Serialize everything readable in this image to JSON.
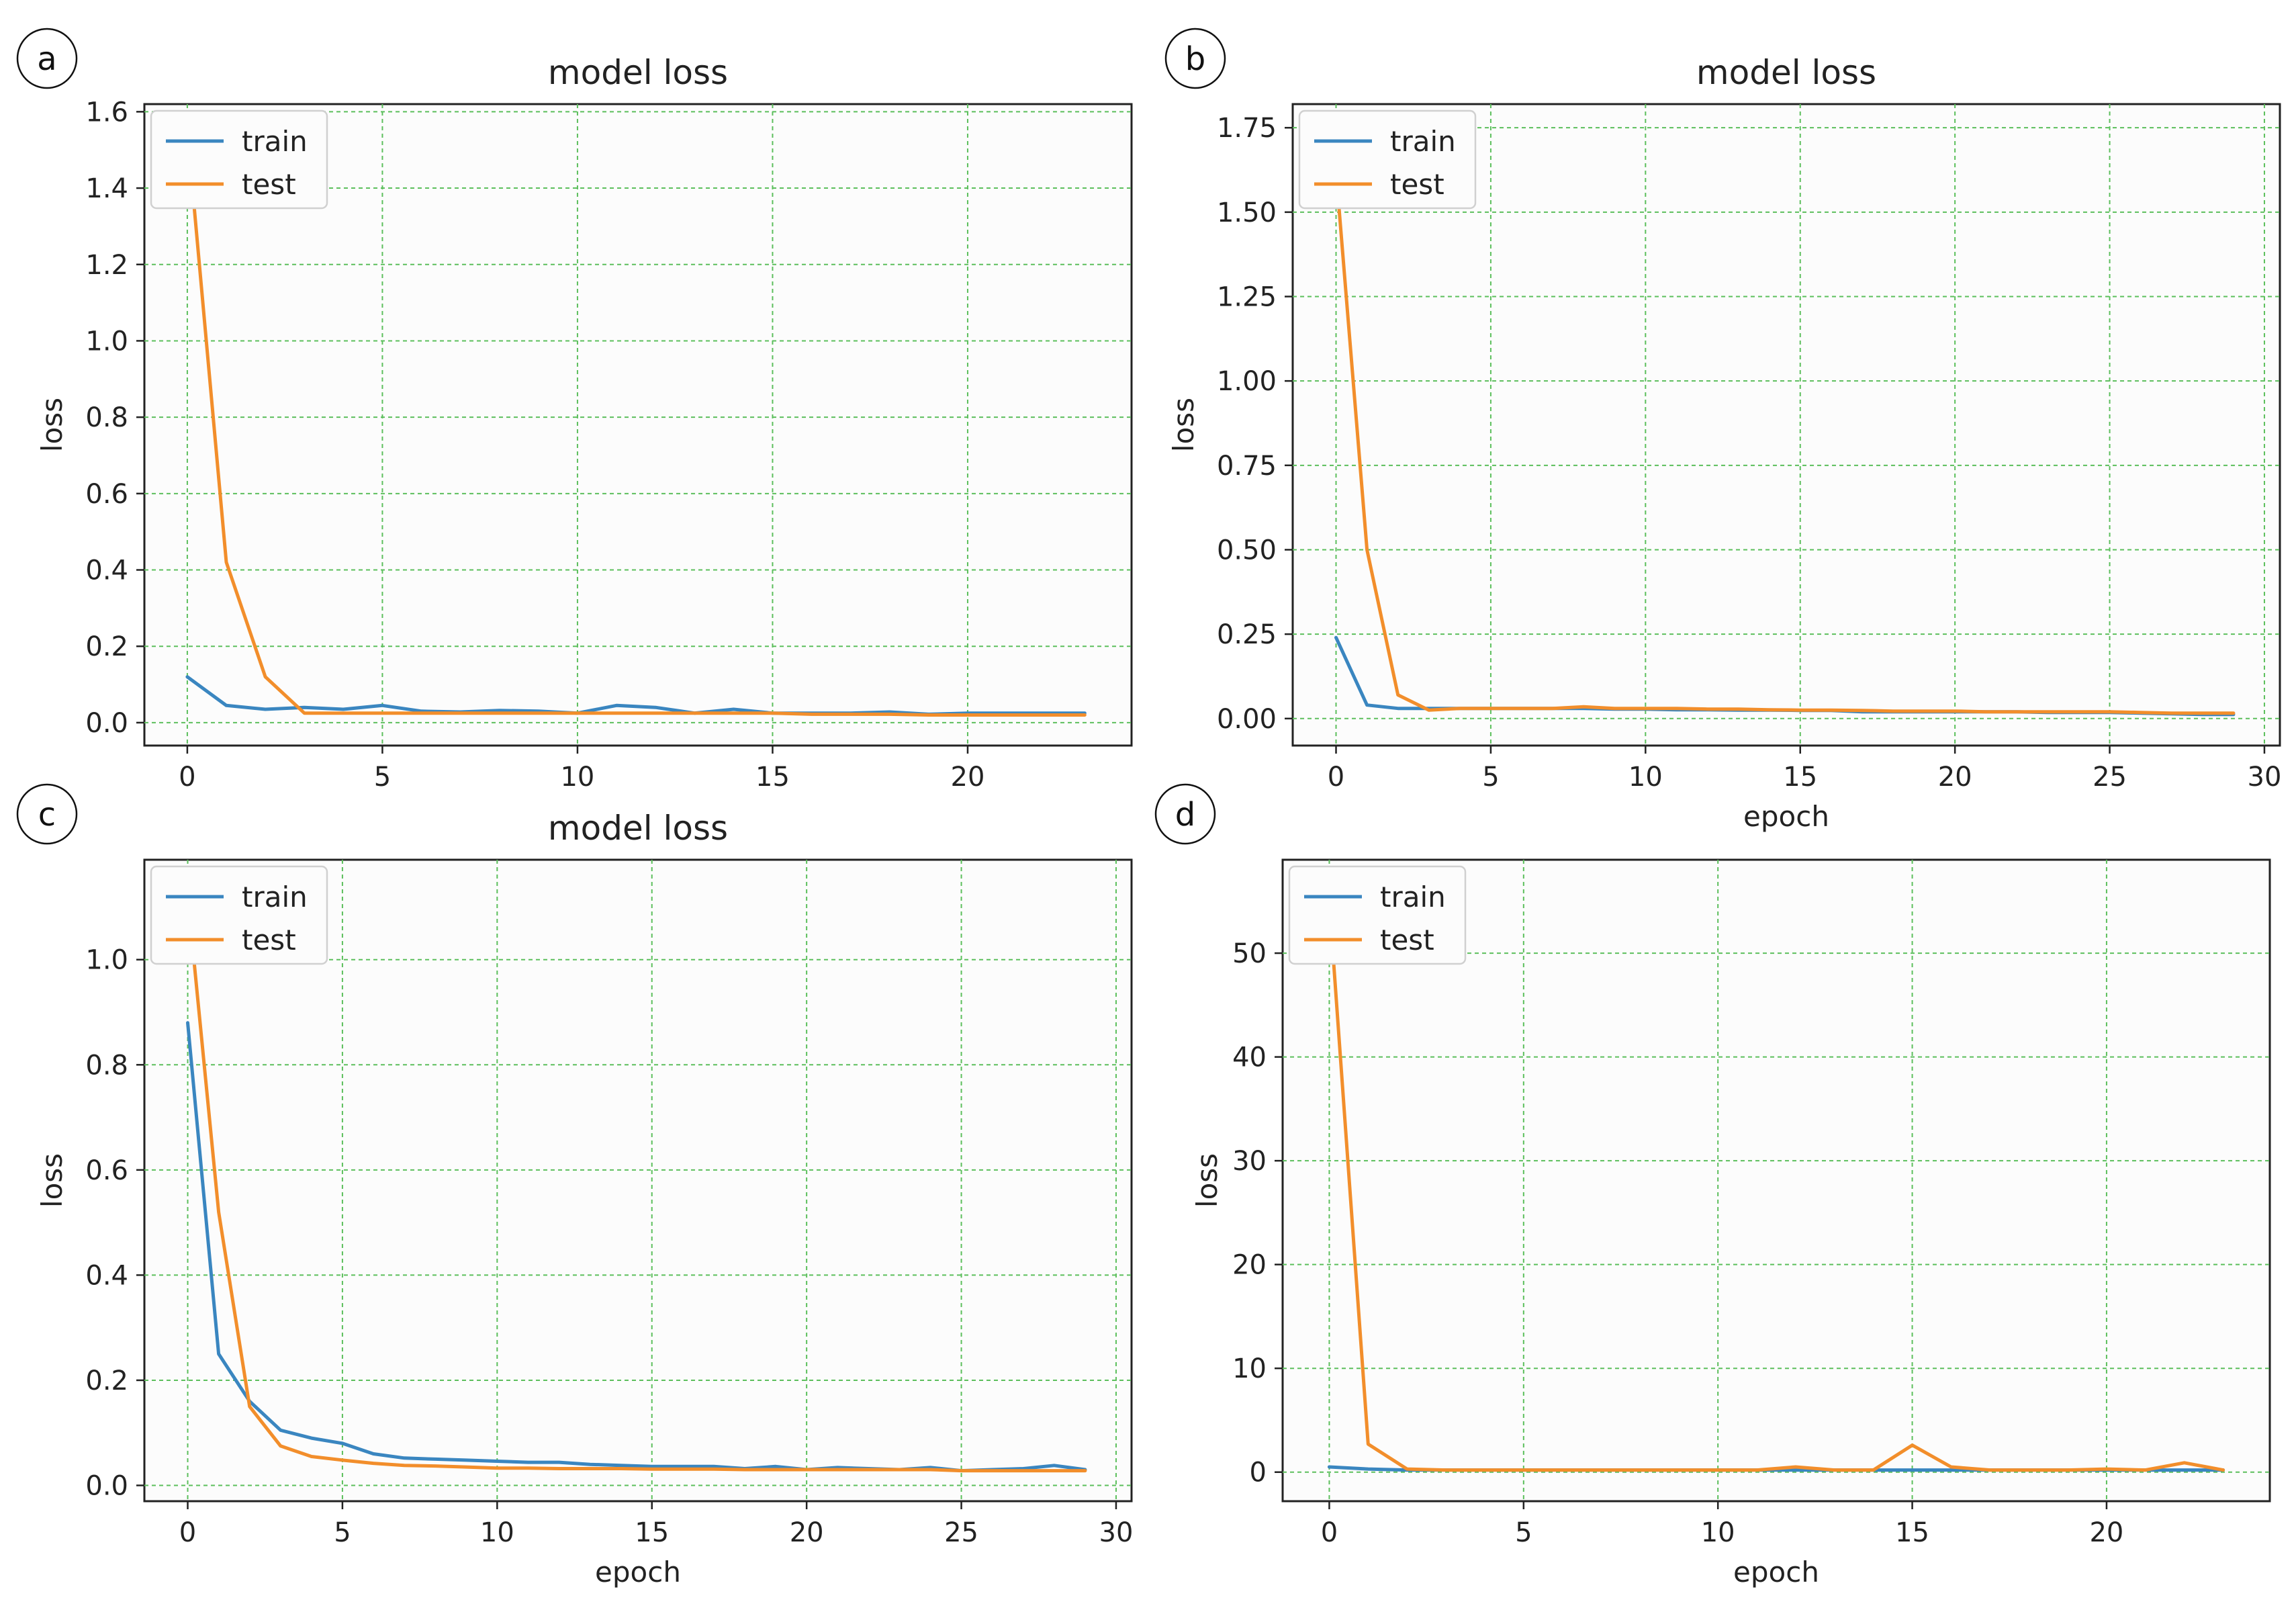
{
  "chart_data": [
    {
      "panel_label": "a",
      "type": "line",
      "title": "model loss",
      "xlabel": "",
      "ylabel": "loss",
      "xlim": [
        -1.1,
        24.2
      ],
      "ylim": [
        -0.06,
        1.62
      ],
      "xticks": [
        0,
        5,
        10,
        15,
        20
      ],
      "xtick_labels": [
        "0",
        "5",
        "10",
        "15",
        "20"
      ],
      "yticks": [
        0,
        0.2,
        0.4,
        0.6,
        0.8,
        1.0,
        1.2,
        1.4,
        1.6
      ],
      "ytick_labels": [
        "0.0",
        "0.2",
        "0.4",
        "0.6",
        "0.8",
        "1.0",
        "1.2",
        "1.4",
        "1.6"
      ],
      "grid": true,
      "legend_position": "upper-left",
      "series": [
        {
          "name": "train",
          "color": "#3a86c0",
          "x": [
            0,
            1,
            2,
            3,
            4,
            5,
            6,
            7,
            8,
            9,
            10,
            11,
            12,
            13,
            14,
            15,
            16,
            17,
            18,
            19,
            20,
            21,
            22,
            23
          ],
          "values": [
            0.12,
            0.045,
            0.035,
            0.04,
            0.035,
            0.045,
            0.03,
            0.028,
            0.032,
            0.03,
            0.025,
            0.045,
            0.04,
            0.025,
            0.035,
            0.025,
            0.025,
            0.025,
            0.028,
            0.022,
            0.025,
            0.025,
            0.025,
            0.025
          ]
        },
        {
          "name": "test",
          "color": "#f28e2b",
          "x": [
            0,
            1,
            2,
            3,
            4,
            5,
            6,
            7,
            8,
            9,
            10,
            11,
            12,
            13,
            14,
            15,
            16,
            17,
            18,
            19,
            20,
            21,
            22,
            23
          ],
          "values": [
            1.55,
            0.42,
            0.12,
            0.025,
            0.025,
            0.025,
            0.025,
            0.025,
            0.025,
            0.025,
            0.025,
            0.025,
            0.025,
            0.025,
            0.025,
            0.025,
            0.022,
            0.022,
            0.022,
            0.02,
            0.02,
            0.02,
            0.02,
            0.02
          ]
        }
      ]
    },
    {
      "panel_label": "b",
      "type": "line",
      "title": "model loss",
      "xlabel": "epoch",
      "ylabel": "loss",
      "xlim": [
        -1.4,
        30.5
      ],
      "ylim": [
        -0.08,
        1.82
      ],
      "xticks": [
        0,
        5,
        10,
        15,
        20,
        25,
        30
      ],
      "xtick_labels": [
        "0",
        "5",
        "10",
        "15",
        "20",
        "25",
        "30"
      ],
      "yticks": [
        0,
        0.25,
        0.5,
        0.75,
        1.0,
        1.25,
        1.5,
        1.75
      ],
      "ytick_labels": [
        "0.00",
        "0.25",
        "0.50",
        "0.75",
        "1.00",
        "1.25",
        "1.50",
        "1.75"
      ],
      "grid": true,
      "legend_position": "upper-left",
      "series": [
        {
          "name": "train",
          "color": "#3a86c0",
          "x": [
            0,
            1,
            2,
            3,
            4,
            5,
            6,
            7,
            8,
            9,
            10,
            11,
            12,
            13,
            14,
            15,
            16,
            17,
            18,
            19,
            20,
            21,
            22,
            23,
            24,
            25,
            26,
            27,
            28,
            29
          ],
          "values": [
            0.24,
            0.04,
            0.03,
            0.03,
            0.03,
            0.03,
            0.03,
            0.03,
            0.03,
            0.028,
            0.028,
            0.026,
            0.026,
            0.025,
            0.025,
            0.024,
            0.024,
            0.02,
            0.02,
            0.02,
            0.02,
            0.02,
            0.02,
            0.018,
            0.018,
            0.018,
            0.016,
            0.014,
            0.012,
            0.012
          ]
        },
        {
          "name": "test",
          "color": "#f28e2b",
          "x": [
            0,
            1,
            2,
            3,
            4,
            5,
            6,
            7,
            8,
            9,
            10,
            11,
            12,
            13,
            14,
            15,
            16,
            17,
            18,
            19,
            20,
            21,
            22,
            23,
            24,
            25,
            26,
            27,
            28,
            29
          ],
          "values": [
            1.62,
            0.5,
            0.07,
            0.025,
            0.03,
            0.03,
            0.03,
            0.03,
            0.035,
            0.03,
            0.03,
            0.03,
            0.028,
            0.028,
            0.026,
            0.025,
            0.025,
            0.024,
            0.022,
            0.022,
            0.022,
            0.02,
            0.02,
            0.02,
            0.02,
            0.02,
            0.018,
            0.016,
            0.016,
            0.016
          ]
        }
      ]
    },
    {
      "panel_label": "c",
      "type": "line",
      "title": "model loss",
      "xlabel": "epoch",
      "ylabel": "loss",
      "xlim": [
        -1.4,
        30.5
      ],
      "ylim": [
        -0.03,
        1.19
      ],
      "xticks": [
        0,
        5,
        10,
        15,
        20,
        25,
        30
      ],
      "xtick_labels": [
        "0",
        "5",
        "10",
        "15",
        "20",
        "25",
        "30"
      ],
      "yticks": [
        0,
        0.2,
        0.4,
        0.6,
        0.8,
        1.0
      ],
      "ytick_labels": [
        "0.0",
        "0.2",
        "0.4",
        "0.6",
        "0.8",
        "1.0"
      ],
      "grid": true,
      "legend_position": "upper-left",
      "series": [
        {
          "name": "train",
          "color": "#3a86c0",
          "x": [
            0,
            1,
            2,
            3,
            4,
            5,
            6,
            7,
            8,
            9,
            10,
            11,
            12,
            13,
            14,
            15,
            16,
            17,
            18,
            19,
            20,
            21,
            22,
            23,
            24,
            25,
            26,
            27,
            28,
            29
          ],
          "values": [
            0.88,
            0.25,
            0.16,
            0.105,
            0.09,
            0.08,
            0.06,
            0.052,
            0.05,
            0.048,
            0.046,
            0.044,
            0.044,
            0.04,
            0.038,
            0.036,
            0.036,
            0.036,
            0.032,
            0.036,
            0.03,
            0.034,
            0.032,
            0.03,
            0.034,
            0.028,
            0.03,
            0.032,
            0.038,
            0.03
          ]
        },
        {
          "name": "test",
          "color": "#f28e2b",
          "x": [
            0,
            1,
            2,
            3,
            4,
            5,
            6,
            7,
            8,
            9,
            10,
            11,
            12,
            13,
            14,
            15,
            16,
            17,
            18,
            19,
            20,
            21,
            22,
            23,
            24,
            25,
            26,
            27,
            28,
            29
          ],
          "values": [
            1.12,
            0.52,
            0.15,
            0.075,
            0.055,
            0.048,
            0.042,
            0.038,
            0.037,
            0.035,
            0.033,
            0.033,
            0.032,
            0.032,
            0.032,
            0.031,
            0.031,
            0.031,
            0.03,
            0.03,
            0.03,
            0.03,
            0.03,
            0.03,
            0.03,
            0.028,
            0.028,
            0.028,
            0.028,
            0.028
          ]
        }
      ]
    },
    {
      "panel_label": "d",
      "type": "line",
      "title": "",
      "xlabel": "epoch",
      "ylabel": "loss",
      "xlim": [
        -1.2,
        24.2
      ],
      "ylim": [
        -2.8,
        59.0
      ],
      "xticks": [
        0,
        5,
        10,
        15,
        20
      ],
      "xtick_labels": [
        "0",
        "5",
        "10",
        "15",
        "20"
      ],
      "yticks": [
        0,
        10,
        20,
        30,
        40,
        50
      ],
      "ytick_labels": [
        "0",
        "10",
        "20",
        "30",
        "40",
        "50"
      ],
      "grid": true,
      "legend_position": "upper-left",
      "series": [
        {
          "name": "train",
          "color": "#3a86c0",
          "x": [
            0,
            1,
            2,
            3,
            4,
            5,
            6,
            7,
            8,
            9,
            10,
            11,
            12,
            13,
            14,
            15,
            16,
            17,
            18,
            19,
            20,
            21,
            22,
            23
          ],
          "values": [
            0.5,
            0.3,
            0.2,
            0.2,
            0.2,
            0.2,
            0.2,
            0.2,
            0.2,
            0.2,
            0.2,
            0.2,
            0.2,
            0.2,
            0.2,
            0.2,
            0.2,
            0.2,
            0.2,
            0.2,
            0.2,
            0.2,
            0.2,
            0.2
          ]
        },
        {
          "name": "test",
          "color": "#f28e2b",
          "x": [
            0,
            1,
            2,
            3,
            4,
            5,
            6,
            7,
            8,
            9,
            10,
            11,
            12,
            13,
            14,
            15,
            16,
            17,
            18,
            19,
            20,
            21,
            22,
            23
          ],
          "values": [
            55.0,
            2.7,
            0.3,
            0.2,
            0.2,
            0.2,
            0.2,
            0.2,
            0.2,
            0.2,
            0.2,
            0.2,
            0.5,
            0.2,
            0.2,
            2.6,
            0.5,
            0.2,
            0.2,
            0.2,
            0.3,
            0.2,
            0.9,
            0.2
          ]
        }
      ]
    }
  ]
}
